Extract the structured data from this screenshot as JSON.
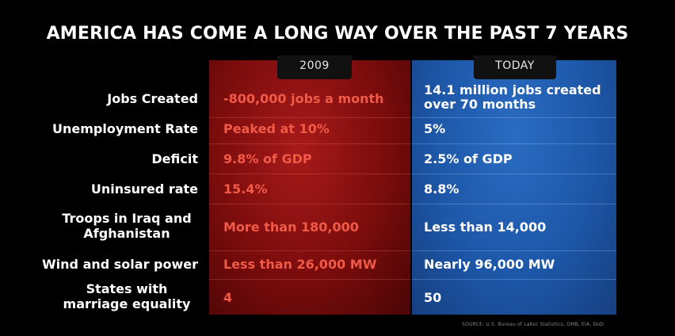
{
  "title": "AMERICA HAS COME A LONG WAY OVER THE PAST 7 YEARS",
  "columns": {
    "left": "2009",
    "right": "TODAY"
  },
  "rows": [
    {
      "label": "Jobs Created",
      "y2009": "-800,000 jobs a month",
      "today": "14.1 million jobs created over 70 months"
    },
    {
      "label": "Unemployment Rate",
      "y2009": "Peaked at 10%",
      "today": "5%"
    },
    {
      "label": "Deficit",
      "y2009": "9.8% of GDP",
      "today": "2.5% of GDP"
    },
    {
      "label": "Uninsured rate",
      "y2009": "15.4%",
      "today": "8.8%"
    },
    {
      "label": "Troops in Iraq and Afghanistan",
      "y2009": "More than 180,000",
      "today": "Less than 14,000"
    },
    {
      "label": "Wind and solar power",
      "y2009": "Less than 26,000 MW",
      "today": "Nearly 96,000 MW"
    },
    {
      "label": "States with marriage equality",
      "y2009": "4",
      "today": "50"
    }
  ],
  "source": "SOURCE: U.S. Bureau of Labor Statistics; OMB, EIA, DoD",
  "colors": {
    "red_panel": "#7a0c0c",
    "red_text": "#f05a46",
    "blue_panel": "#1d57a8"
  }
}
